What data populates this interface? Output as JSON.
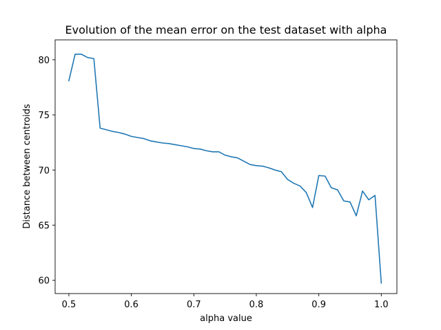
{
  "chart_data": {
    "type": "line",
    "title": "Evolution of the mean error on the test dataset with alpha",
    "xlabel": "alpha value",
    "ylabel": "Distance between centroids",
    "xlim": [
      0.478,
      1.025
    ],
    "ylim": [
      58.8,
      81.8
    ],
    "xticks": [
      0.5,
      0.6,
      0.7,
      0.8,
      0.9,
      1.0
    ],
    "xtick_labels": [
      "0.5",
      "0.6",
      "0.7",
      "0.8",
      "0.9",
      "1.0"
    ],
    "yticks": [
      60,
      65,
      70,
      75,
      80
    ],
    "ytick_labels": [
      "60",
      "65",
      "70",
      "75",
      "80"
    ],
    "grid": false,
    "series": [
      {
        "color": "#1f77b4",
        "x": [
          0.5,
          0.51,
          0.52,
          0.53,
          0.54,
          0.55,
          0.56,
          0.57,
          0.58,
          0.59,
          0.6,
          0.61,
          0.62,
          0.63,
          0.64,
          0.65,
          0.66,
          0.67,
          0.68,
          0.69,
          0.7,
          0.71,
          0.72,
          0.73,
          0.74,
          0.75,
          0.76,
          0.77,
          0.78,
          0.79,
          0.8,
          0.81,
          0.82,
          0.83,
          0.84,
          0.85,
          0.86,
          0.87,
          0.88,
          0.89,
          0.9,
          0.91,
          0.92,
          0.93,
          0.94,
          0.95,
          0.96,
          0.97,
          0.98,
          0.99,
          1.0
        ],
        "y": [
          78.1,
          80.5,
          80.5,
          80.2,
          80.1,
          73.8,
          73.65,
          73.5,
          73.4,
          73.25,
          73.05,
          72.95,
          72.85,
          72.65,
          72.55,
          72.45,
          72.4,
          72.3,
          72.2,
          72.1,
          71.95,
          71.9,
          71.75,
          71.65,
          71.65,
          71.35,
          71.2,
          71.1,
          70.8,
          70.5,
          70.4,
          70.35,
          70.2,
          70.0,
          69.85,
          69.15,
          68.8,
          68.55,
          67.95,
          66.6,
          69.5,
          69.45,
          68.4,
          68.2,
          67.2,
          67.1,
          65.85,
          68.1,
          67.3,
          67.7,
          59.75
        ]
      }
    ]
  }
}
